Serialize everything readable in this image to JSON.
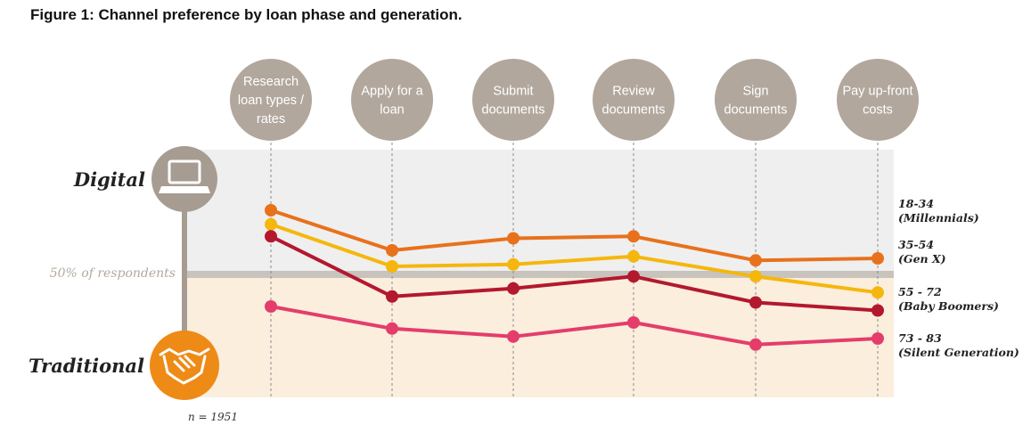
{
  "figure_title": "Figure 1: Channel preference by loan phase and generation.",
  "axis": {
    "top_label": "Digital",
    "bottom_label": "Traditional",
    "midline_label": "50% of respondents",
    "top_icon": "laptop-icon",
    "bottom_icon": "handshake-icon"
  },
  "footnote": "n = 1951",
  "colors": {
    "digital_band": "#efefef",
    "traditional_band": "#fbeedd",
    "midline": "#c8c3bc",
    "phase_circle": "#b1a79d",
    "axis_line": "#a79c92",
    "traditional_circle": "#ee8a16",
    "digital_circle": "#a79c92"
  },
  "chart_data": {
    "type": "line",
    "title": "Figure 1: Channel preference by loan phase and generation.",
    "categories": [
      [
        "Research",
        "loan types /",
        "rates"
      ],
      [
        "Apply for a",
        "loan"
      ],
      [
        "Submit",
        "documents"
      ],
      [
        "Review",
        "documents"
      ],
      [
        "Sign",
        "documents"
      ],
      [
        "Pay up-front",
        "costs"
      ]
    ],
    "ylim": [
      0,
      100
    ],
    "midline": 50,
    "y_top_label": "Digital",
    "y_bottom_label": "Traditional",
    "series": [
      {
        "name": [
          "18-34",
          "(Millennials)"
        ],
        "color": "#e8711c",
        "values": [
          82,
          62,
          68,
          69,
          57,
          58
        ]
      },
      {
        "name": [
          "35-54",
          "(Gen X)"
        ],
        "color": "#f5b70e",
        "values": [
          75,
          54,
          55,
          59,
          49,
          41
        ]
      },
      {
        "name": [
          "55 - 72",
          "(Baby Boomers)"
        ],
        "color": "#b3182f",
        "values": [
          69,
          39,
          43,
          49,
          36,
          32
        ]
      },
      {
        "name": [
          "73 - 83",
          "(Silent Generation)"
        ],
        "color": "#e43d6b",
        "values": [
          34,
          23,
          19,
          26,
          15,
          18
        ]
      }
    ],
    "grid": false,
    "legend": "right"
  }
}
